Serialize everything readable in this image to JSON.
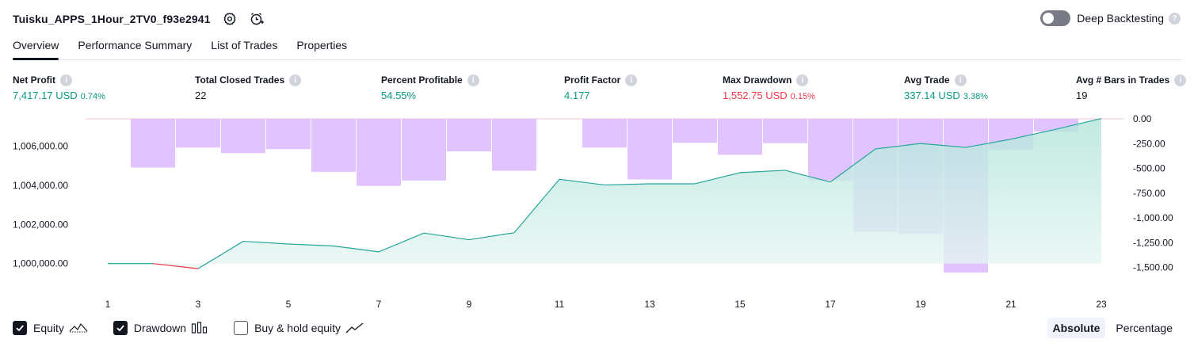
{
  "header": {
    "title": "Tuisku_APPS_1Hour_2TV0_f93e2941",
    "settings_icon": "gear-icon",
    "alert_icon": "add-alert-icon",
    "deep_backtesting_label": "Deep Backtesting",
    "deep_backtesting_enabled": false,
    "help_glyph": "?"
  },
  "tabs": [
    {
      "label": "Overview",
      "active": true
    },
    {
      "label": "Performance Summary",
      "active": false
    },
    {
      "label": "List of Trades",
      "active": false
    },
    {
      "label": "Properties",
      "active": false
    }
  ],
  "info_glyph": "i",
  "metrics": [
    {
      "label": "Net Profit",
      "value": "7,417.17 USD",
      "pct": "0.74%",
      "tone": "pos"
    },
    {
      "label": "Total Closed Trades",
      "value": "22",
      "pct": "",
      "tone": "neutral"
    },
    {
      "label": "Percent Profitable",
      "value": "54.55%",
      "pct": "",
      "tone": "pos"
    },
    {
      "label": "Profit Factor",
      "value": "4.177",
      "pct": "",
      "tone": "pos"
    },
    {
      "label": "Max Drawdown",
      "value": "1,552.75 USD",
      "pct": "0.15%",
      "tone": "neg"
    },
    {
      "label": "Avg Trade",
      "value": "337.14 USD",
      "pct": "3.38%",
      "tone": "pos"
    },
    {
      "label": "Avg # Bars in Trades",
      "value": "19",
      "pct": "",
      "tone": "neutral"
    }
  ],
  "chart_data": {
    "type": "line+bar",
    "x": [
      1,
      2,
      3,
      4,
      5,
      6,
      7,
      8,
      9,
      10,
      11,
      12,
      13,
      14,
      15,
      16,
      17,
      18,
      19,
      20,
      21,
      22,
      23
    ],
    "x_tick_labels": [
      "1",
      "3",
      "5",
      "7",
      "9",
      "11",
      "13",
      "15",
      "17",
      "19",
      "21",
      "23"
    ],
    "left_axis": {
      "ticks": [
        "1,000,000.00",
        "1,002,000.00",
        "1,004,000.00",
        "1,006,000.00"
      ],
      "ylim": [
        999300,
        1007400
      ]
    },
    "right_axis": {
      "ticks": [
        "0.00",
        "-250.00",
        "-500.00",
        "-750.00",
        "-1,000.00",
        "-1,250.00",
        "-1,500.00"
      ],
      "ylim": [
        -1600,
        0
      ]
    },
    "series": [
      {
        "name": "Equity",
        "type": "area",
        "axis": "left",
        "values": [
          1000000,
          1000000,
          999740,
          1001140,
          1001000,
          1000900,
          1000600,
          1001560,
          1001220,
          1001580,
          1004310,
          1004020,
          1004080,
          1004080,
          1004650,
          1004770,
          1004170,
          1005860,
          1006140,
          1005940,
          1006360,
          1006870,
          1007417.17
        ],
        "colors": {
          "above": "#26a69a",
          "below": "#f23645",
          "fill": "#c9ece5"
        }
      },
      {
        "name": "Drawdown",
        "type": "bar",
        "axis": "right",
        "values": [
          0,
          -492,
          -290,
          -346,
          -306,
          -535,
          -678,
          -623,
          -329,
          -525,
          0,
          -290,
          -612,
          -242,
          -363,
          -246,
          -623,
          -1141,
          -1163,
          -1552.75,
          -316,
          -129,
          0
        ],
        "color": "#e1c4ff"
      }
    ],
    "grid": false
  },
  "legend": [
    {
      "label": "Equity",
      "checked": true,
      "icon": "equity-line-icon"
    },
    {
      "label": "Drawdown",
      "checked": true,
      "icon": "drawdown-bars-icon"
    },
    {
      "label": "Buy & hold equity",
      "checked": false,
      "icon": "buy-hold-line-icon"
    }
  ],
  "mode": {
    "options": [
      "Absolute",
      "Percentage"
    ],
    "selected": "Absolute"
  }
}
